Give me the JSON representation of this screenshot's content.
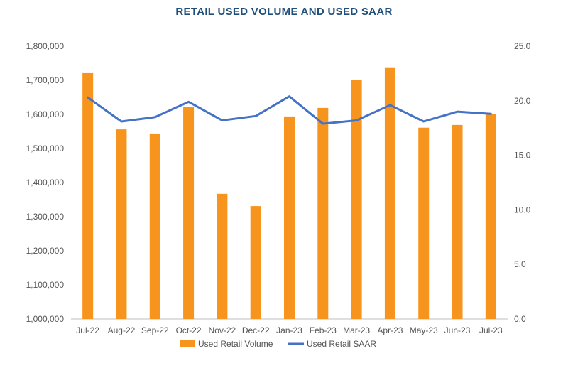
{
  "chart_data": {
    "type": "bar",
    "title": "RETAIL USED VOLUME AND USED SAAR",
    "categories": [
      "Jul-22",
      "Aug-22",
      "Sep-22",
      "Oct-22",
      "Nov-22",
      "Dec-22",
      "Jan-23",
      "Feb-23",
      "Mar-23",
      "Apr-23",
      "May-23",
      "Jun-23",
      "Jul-23"
    ],
    "series": [
      {
        "name": "Used Retail Volume",
        "type": "bar",
        "axis": "left",
        "color": "#F7941D",
        "values": [
          1721000,
          1556000,
          1544000,
          1622000,
          1367000,
          1331000,
          1594000,
          1619000,
          1700000,
          1736000,
          1561000,
          1569000,
          1601000
        ]
      },
      {
        "name": "Used Retail SAAR",
        "type": "line",
        "axis": "right",
        "color": "#4472C4",
        "values": [
          20.3,
          18.1,
          18.5,
          19.9,
          18.2,
          18.6,
          20.4,
          17.9,
          18.2,
          19.6,
          18.1,
          19.0,
          18.8
        ]
      }
    ],
    "y_left": {
      "ylim": [
        1000000,
        1800000
      ],
      "ticks": [
        1000000,
        1100000,
        1200000,
        1300000,
        1400000,
        1500000,
        1600000,
        1700000,
        1800000
      ],
      "tick_labels": [
        "1,000,000",
        "1,100,000",
        "1,200,000",
        "1,300,000",
        "1,400,000",
        "1,500,000",
        "1,600,000",
        "1,700,000",
        "1,800,000"
      ]
    },
    "y_right": {
      "ylim": [
        0,
        25
      ],
      "ticks": [
        0,
        5,
        10,
        15,
        20,
        25
      ],
      "tick_labels": [
        "0.0",
        "5.0",
        "10.0",
        "15.0",
        "20.0",
        "25.0"
      ]
    },
    "grid": false,
    "legend_position": "bottom",
    "colors": {
      "title": "#1F4E79",
      "axis_line": "#BFBFBF",
      "tick_text": "#595959"
    }
  }
}
